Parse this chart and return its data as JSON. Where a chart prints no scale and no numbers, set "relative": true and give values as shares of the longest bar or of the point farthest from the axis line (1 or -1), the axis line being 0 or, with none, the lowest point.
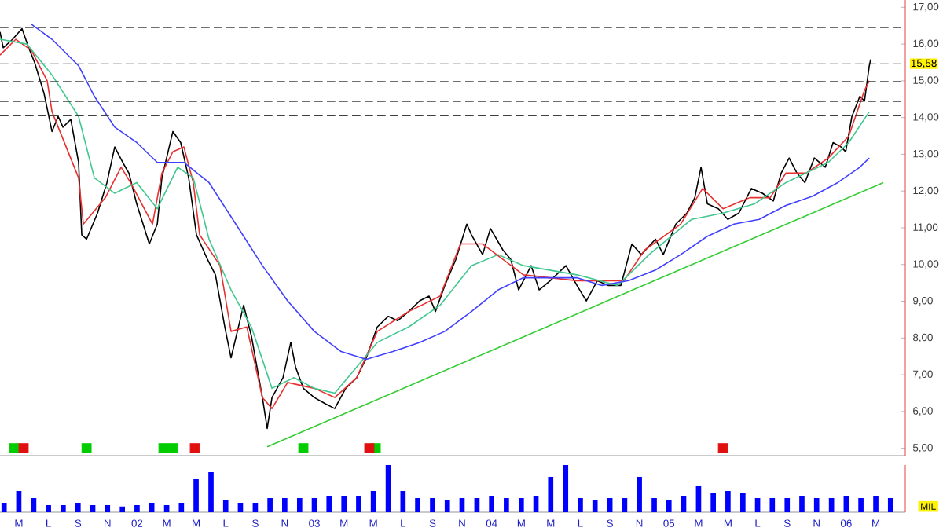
{
  "chart_data": [
    {
      "type": "line",
      "xlim": [
        2001.227,
        2006.333
      ],
      "ylim": [
        4.8,
        17.2
      ],
      "yticks": [
        {
          "value": 5,
          "label": "5,00"
        },
        {
          "value": 6,
          "label": "6,00"
        },
        {
          "value": 7,
          "label": "7,00"
        },
        {
          "value": 8,
          "label": "8,00"
        },
        {
          "value": 9,
          "label": "9,00"
        },
        {
          "value": 10,
          "label": "10,00"
        },
        {
          "value": 11,
          "label": "11,00"
        },
        {
          "value": 12,
          "label": "12,00"
        },
        {
          "value": 13,
          "label": "13,00"
        },
        {
          "value": 14,
          "label": "14,00"
        },
        {
          "value": 15,
          "label": "15,00"
        },
        {
          "value": 16,
          "label": "16,00"
        },
        {
          "value": 17,
          "label": "17,00"
        }
      ],
      "tick_labels": "y",
      "marker": "none",
      "line_style": "solid",
      "series": [
        {
          "color": "#000000",
          "x": [
            2001.227,
            2001.245,
            2001.298,
            2001.351,
            2001.387,
            2001.422,
            2001.475,
            2001.52,
            2001.555,
            2001.582,
            2001.626,
            2001.67,
            2001.688,
            2001.715,
            2001.777,
            2001.83,
            2001.874,
            2001.919,
            2001.954,
            2001.998,
            2002.069,
            2002.114,
            2002.14,
            2002.202,
            2002.246,
            2002.291,
            2002.335,
            2002.397,
            2002.442,
            2002.495,
            2002.53,
            2002.601,
            2002.645,
            2002.707,
            2002.734,
            2002.761,
            2002.823,
            2002.867,
            2002.894,
            2002.938,
            2003.0,
            2003.062,
            2003.115,
            2003.177,
            2003.239,
            2003.293,
            2003.355,
            2003.417,
            2003.47,
            2003.532,
            2003.594,
            2003.647,
            2003.683,
            2003.736,
            2003.798,
            2003.86,
            2003.886,
            2003.949,
            2003.993,
            2004.064,
            2004.108,
            2004.152,
            2004.223,
            2004.268,
            2004.33,
            2004.419,
            2004.481,
            2004.534,
            2004.596,
            2004.658,
            2004.729,
            2004.791,
            2004.844,
            2004.924,
            2004.968,
            2005.039,
            2005.101,
            2005.146,
            2005.181,
            2005.217,
            2005.279,
            2005.332,
            2005.394,
            2005.465,
            2005.527,
            2005.589,
            2005.633,
            2005.678,
            2005.722,
            2005.767,
            2005.82,
            2005.882,
            2005.926,
            2005.971,
            2005.997,
            2006.032,
            2006.077,
            2006.103,
            2006.13,
            2006.138
          ],
          "values": [
            16.33,
            15.9,
            16.13,
            16.42,
            15.92,
            15.5,
            14.66,
            13.62,
            14.03,
            13.74,
            13.95,
            12.78,
            10.81,
            10.69,
            11.4,
            12.23,
            13.2,
            12.78,
            12.49,
            11.65,
            10.56,
            11.1,
            12.36,
            13.62,
            13.32,
            12.36,
            10.81,
            10.14,
            9.72,
            8.3,
            7.46,
            8.89,
            8.05,
            6.38,
            5.54,
            6.38,
            6.92,
            7.88,
            7.21,
            6.63,
            6.38,
            6.21,
            6.08,
            6.63,
            6.92,
            7.46,
            8.3,
            8.59,
            8.47,
            8.72,
            9.01,
            9.14,
            8.72,
            9.43,
            10.14,
            11.1,
            10.81,
            10.27,
            10.98,
            10.39,
            10.14,
            9.31,
            9.97,
            9.31,
            9.56,
            9.97,
            9.43,
            9.01,
            9.56,
            9.43,
            9.43,
            10.56,
            10.27,
            10.69,
            10.27,
            11.1,
            11.4,
            11.82,
            12.65,
            11.65,
            11.52,
            11.23,
            11.4,
            12.07,
            11.94,
            11.73,
            12.49,
            12.9,
            12.49,
            12.23,
            12.9,
            12.65,
            13.32,
            13.2,
            13.07,
            14.03,
            14.58,
            14.45,
            15.41,
            15.58
          ]
        },
        {
          "color": "#e83030",
          "x": [
            2001.227,
            2001.316,
            2001.404,
            2001.493,
            2001.52,
            2001.67,
            2001.697,
            2001.821,
            2001.91,
            2001.963,
            2002.087,
            2002.14,
            2002.202,
            2002.264,
            2002.317,
            2002.353,
            2002.468,
            2002.53,
            2002.619,
            2002.707,
            2002.761,
            2002.849,
            2003.0,
            2003.115,
            2003.239,
            2003.355,
            2003.532,
            2003.709,
            2003.824,
            2003.949,
            2004.179,
            2004.481,
            2004.746,
            2004.862,
            2005.066,
            2005.19,
            2005.305,
            2005.456,
            2005.571,
            2005.66,
            2005.775,
            2005.899,
            2006.014,
            2006.103,
            2006.13
          ],
          "values": [
            15.7,
            16.13,
            15.83,
            15.0,
            14.16,
            12.36,
            11.1,
            11.82,
            12.65,
            12.23,
            11.1,
            12.49,
            13.07,
            13.2,
            12.23,
            10.81,
            9.97,
            8.18,
            8.3,
            6.38,
            6.08,
            6.79,
            6.63,
            6.38,
            6.92,
            8.18,
            8.72,
            9.14,
            10.56,
            10.56,
            9.72,
            9.56,
            9.56,
            10.39,
            11.1,
            12.07,
            11.52,
            11.82,
            11.82,
            12.49,
            12.49,
            12.9,
            13.49,
            14.74,
            15.0
          ]
        },
        {
          "color": "#40c890",
          "x": [
            2001.227,
            2001.378,
            2001.52,
            2001.67,
            2001.759,
            2001.874,
            2001.998,
            2002.114,
            2002.229,
            2002.317,
            2002.406,
            2002.53,
            2002.645,
            2002.761,
            2002.885,
            2003.0,
            2003.115,
            2003.239,
            2003.355,
            2003.532,
            2003.709,
            2003.886,
            2004.037,
            2004.179,
            2004.481,
            2004.711,
            2004.888,
            2005.128,
            2005.305,
            2005.482,
            2005.66,
            2005.899,
            2006.014,
            2006.13
          ],
          "values": [
            16.13,
            16.0,
            15.16,
            14.03,
            12.36,
            11.94,
            12.23,
            11.52,
            12.65,
            12.36,
            10.69,
            9.31,
            8.3,
            6.63,
            6.92,
            6.63,
            6.5,
            7.21,
            7.88,
            8.3,
            8.89,
            9.97,
            10.27,
            9.97,
            9.72,
            9.43,
            10.27,
            11.23,
            11.4,
            11.65,
            12.23,
            12.78,
            13.32,
            14.16
          ]
        },
        {
          "color": "#4040ff",
          "x": [
            2001.404,
            2001.52,
            2001.67,
            2001.759,
            2001.874,
            2001.998,
            2002.114,
            2002.264,
            2002.406,
            2002.557,
            2002.707,
            2002.849,
            2003.0,
            2003.151,
            2003.293,
            2003.443,
            2003.594,
            2003.736,
            2003.886,
            2004.037,
            2004.179,
            2004.48,
            2004.622,
            2004.773,
            2004.924,
            2005.066,
            2005.217,
            2005.367,
            2005.509,
            2005.66,
            2005.81,
            2005.952,
            2006.077,
            2006.13
          ],
          "values": [
            16.54,
            16.13,
            15.41,
            14.58,
            13.74,
            13.32,
            12.78,
            12.78,
            12.23,
            11.1,
            9.97,
            9.01,
            8.18,
            7.63,
            7.42,
            7.63,
            7.88,
            8.18,
            8.72,
            9.31,
            9.64,
            9.64,
            9.43,
            9.56,
            9.85,
            10.27,
            10.77,
            11.1,
            11.23,
            11.61,
            11.86,
            12.23,
            12.65,
            12.9
          ]
        },
        {
          "color": "#33cc33",
          "x": [
            2002.734,
            2006.209
          ],
          "values": [
            5.04,
            12.23
          ]
        },
        {
          "type": "scatter",
          "marker": "square",
          "color": "#00cc00",
          "x": [
            2001.307,
            2001.715,
            2002.149,
            2002.202,
            2002.938,
            2003.346
          ],
          "values": [
            5.0,
            5.0,
            5.0,
            5.0,
            5.0,
            5.0
          ]
        },
        {
          "type": "scatter",
          "marker": "square",
          "color": "#e01010",
          "x": [
            2001.36,
            2002.326,
            2003.31,
            2005.305
          ],
          "values": [
            5.0,
            5.0,
            5.0,
            5.0
          ]
        }
      ],
      "ref_lines": [
        {
          "axis": "y",
          "value": 16.45,
          "color": "#404040",
          "line_style": "dashed"
        },
        {
          "axis": "y",
          "value": 15.46,
          "color": "#404040",
          "line_style": "dashed"
        },
        {
          "axis": "y",
          "value": 14.98,
          "color": "#404040",
          "line_style": "dashed"
        },
        {
          "axis": "y",
          "value": 14.44,
          "color": "#404040",
          "line_style": "dashed"
        },
        {
          "axis": "y",
          "value": 14.05,
          "color": "#404040",
          "line_style": "dashed"
        }
      ],
      "annotations": [
        "15,58"
      ]
    },
    {
      "type": "bar",
      "relative": true,
      "ylabel": "MIL",
      "xlim": [
        2001.227,
        2006.333
      ],
      "tick_labels": "x",
      "xticks": [
        {
          "value": 2001.333,
          "label": "M"
        },
        {
          "value": 2001.5,
          "label": "L"
        },
        {
          "value": 2001.667,
          "label": "S"
        },
        {
          "value": 2001.833,
          "label": "N"
        },
        {
          "value": 2002.0,
          "label": "02"
        },
        {
          "value": 2002.167,
          "label": "M"
        },
        {
          "value": 2002.333,
          "label": "M"
        },
        {
          "value": 2002.5,
          "label": "L"
        },
        {
          "value": 2002.667,
          "label": "S"
        },
        {
          "value": 2002.833,
          "label": "N"
        },
        {
          "value": 2003.0,
          "label": "03"
        },
        {
          "value": 2003.167,
          "label": "M"
        },
        {
          "value": 2003.333,
          "label": "M"
        },
        {
          "value": 2003.5,
          "label": "L"
        },
        {
          "value": 2003.667,
          "label": "S"
        },
        {
          "value": 2003.833,
          "label": "N"
        },
        {
          "value": 2004.0,
          "label": "04"
        },
        {
          "value": 2004.167,
          "label": "M"
        },
        {
          "value": 2004.333,
          "label": "M"
        },
        {
          "value": 2004.5,
          "label": "L"
        },
        {
          "value": 2004.667,
          "label": "S"
        },
        {
          "value": 2004.833,
          "label": "N"
        },
        {
          "value": 2005.0,
          "label": "05"
        },
        {
          "value": 2005.167,
          "label": "M"
        },
        {
          "value": 2005.333,
          "label": "M"
        },
        {
          "value": 2005.5,
          "label": "L"
        },
        {
          "value": 2005.667,
          "label": "S"
        },
        {
          "value": 2005.833,
          "label": "N"
        },
        {
          "value": 2006.0,
          "label": "06"
        },
        {
          "value": 2006.167,
          "label": "M"
        }
      ],
      "series": [
        {
          "color": "#0000ff",
          "x": [
            2001.25,
            2001.333,
            2001.417,
            2001.5,
            2001.583,
            2001.667,
            2001.75,
            2001.833,
            2001.917,
            2002.0,
            2002.083,
            2002.167,
            2002.25,
            2002.333,
            2002.417,
            2002.5,
            2002.583,
            2002.667,
            2002.75,
            2002.833,
            2002.917,
            2003.0,
            2003.083,
            2003.167,
            2003.25,
            2003.333,
            2003.417,
            2003.5,
            2003.583,
            2003.667,
            2003.75,
            2003.833,
            2003.917,
            2004.0,
            2004.083,
            2004.167,
            2004.25,
            2004.333,
            2004.417,
            2004.5,
            2004.583,
            2004.667,
            2004.75,
            2004.833,
            2004.917,
            2005.0,
            2005.083,
            2005.167,
            2005.25,
            2005.333,
            2005.417,
            2005.5,
            2005.583,
            2005.667,
            2005.75,
            2005.833,
            2005.917,
            2006.0,
            2006.083,
            2006.167,
            2006.25
          ],
          "values": [
            0.2,
            0.45,
            0.3,
            0.15,
            0.15,
            0.2,
            0.15,
            0.15,
            0.12,
            0.15,
            0.2,
            0.15,
            0.2,
            0.7,
            0.85,
            0.25,
            0.2,
            0.2,
            0.3,
            0.3,
            0.3,
            0.3,
            0.35,
            0.35,
            0.35,
            0.45,
            1.0,
            0.45,
            0.3,
            0.3,
            0.25,
            0.3,
            0.3,
            0.35,
            0.3,
            0.3,
            0.35,
            0.75,
            1.0,
            0.3,
            0.25,
            0.3,
            0.3,
            0.75,
            0.3,
            0.25,
            0.35,
            0.55,
            0.4,
            0.45,
            0.4,
            0.3,
            0.3,
            0.3,
            0.35,
            0.3,
            0.3,
            0.35,
            0.3,
            0.35,
            0.3
          ]
        }
      ]
    }
  ]
}
